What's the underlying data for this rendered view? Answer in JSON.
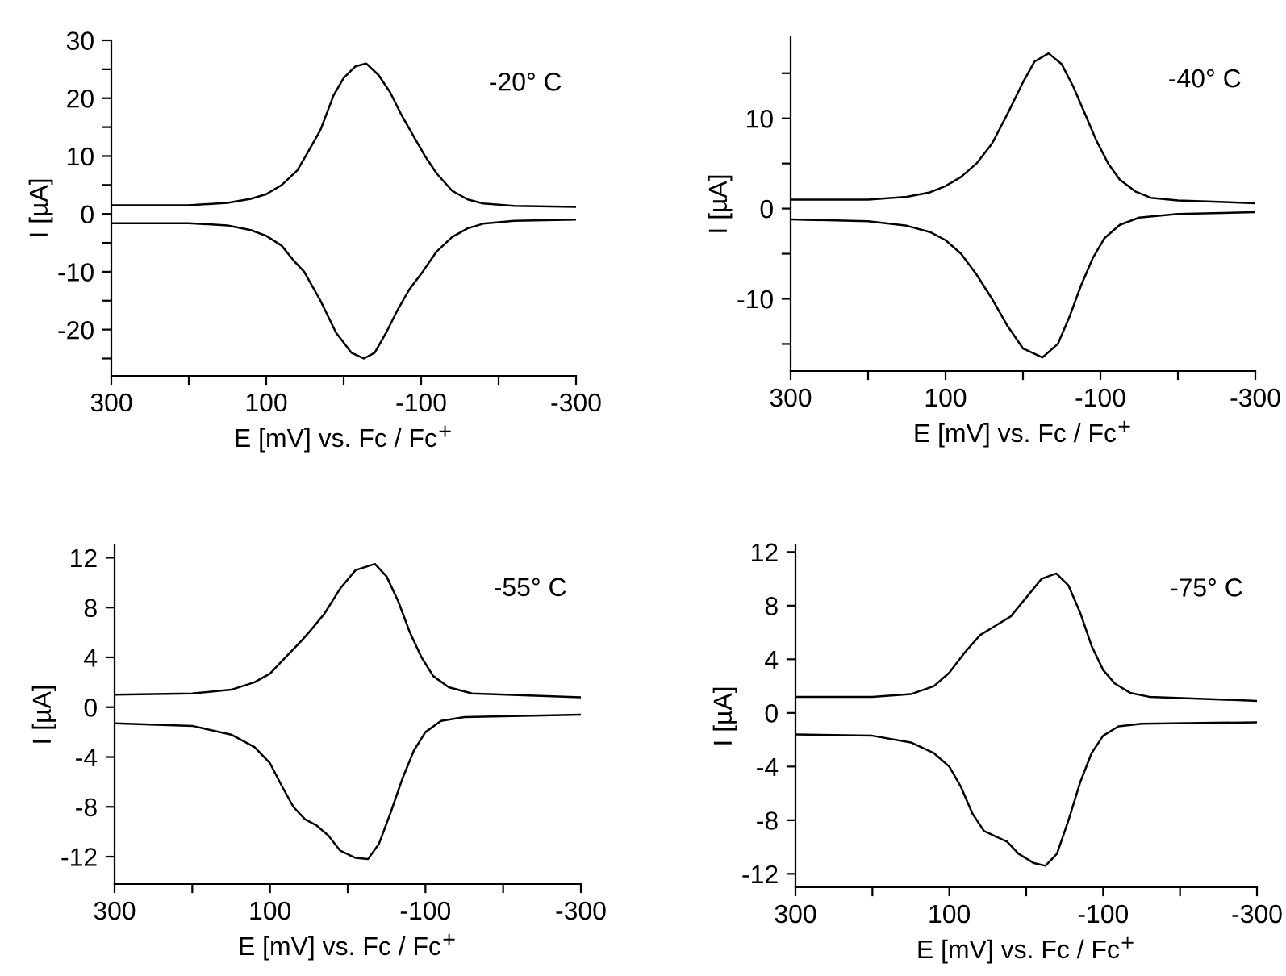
{
  "chart_data": [
    {
      "type": "line",
      "xlabel": "E [mV] vs. Fc / Fc$^{+}$",
      "ylabel": "I [µA]",
      "annotations": [
        "-20° C"
      ],
      "xlim": [
        300,
        -300
      ],
      "ylim": [
        -28,
        30
      ],
      "xticks": [
        300,
        {
          "value": 200,
          "label": null
        },
        100,
        {
          "value": 0,
          "label": null
        },
        -100,
        {
          "value": -200,
          "label": null
        },
        -300
      ],
      "yticks": [
        30,
        {
          "value": 25,
          "label": null
        },
        20,
        {
          "value": 15,
          "label": null
        },
        10,
        {
          "value": 5,
          "label": null
        },
        0,
        {
          "value": -5,
          "label": null
        },
        -10,
        {
          "value": -15,
          "label": null
        },
        -20,
        {
          "value": -25,
          "label": null
        }
      ],
      "marker": "none",
      "line_style": "solid",
      "series": [
        {
          "color": "#000000",
          "x": [
            300,
            200,
            150,
            120,
            100,
            80,
            60,
            49,
            30,
            13,
            0,
            -15,
            -29,
            -45,
            -60,
            -75,
            -90,
            -105,
            -120,
            -140,
            -160,
            -180,
            -220,
            -300
          ],
          "values": [
            1.5,
            1.5,
            1.9,
            2.6,
            3.4,
            5,
            7.5,
            10,
            14.5,
            20.5,
            23.5,
            25.5,
            26,
            24,
            21,
            17,
            13.5,
            10,
            7,
            4,
            2.5,
            1.8,
            1.4,
            1.2
          ]
        },
        {
          "color": "#000000",
          "x": [
            300,
            200,
            150,
            120,
            100,
            80,
            65,
            51,
            30,
            10,
            -10,
            -26,
            -40,
            -55,
            -70,
            -85,
            -102,
            -120,
            -140,
            -160,
            -180,
            -220,
            -300
          ],
          "values": [
            -1.6,
            -1.6,
            -2.0,
            -2.8,
            -3.8,
            -5.5,
            -8,
            -10,
            -15,
            -20.5,
            -24,
            -25,
            -24,
            -20.5,
            -16.5,
            -13,
            -10,
            -6.5,
            -4,
            -2.5,
            -1.7,
            -1.2,
            -1.0
          ]
        }
      ]
    },
    {
      "type": "line",
      "xlabel": "E [mV] vs. Fc / Fc$^{+}$",
      "ylabel": "I [µA]",
      "annotations": [
        "-40° C"
      ],
      "xlim": [
        300,
        -300
      ],
      "ylim": [
        -18,
        19
      ],
      "xticks": [
        300,
        {
          "value": 200,
          "label": null
        },
        100,
        {
          "value": 0,
          "label": null
        },
        -100,
        {
          "value": -200,
          "label": null
        },
        -300
      ],
      "yticks": [
        {
          "value": 15,
          "label": null
        },
        10,
        {
          "value": 5,
          "label": null
        },
        0,
        {
          "value": -5,
          "label": null
        },
        -10,
        {
          "value": -15,
          "label": null
        }
      ],
      "marker": "none",
      "line_style": "solid",
      "series": [
        {
          "color": "#000000",
          "x": [
            300,
            200,
            150,
            120,
            100,
            80,
            60,
            40,
            20,
            0,
            -15,
            -33,
            -50,
            -65,
            -80,
            -95,
            -110,
            -125,
            -145,
            -165,
            -200,
            -300
          ],
          "values": [
            1.0,
            1.0,
            1.3,
            1.8,
            2.5,
            3.5,
            5.0,
            7.2,
            10.5,
            14,
            16.3,
            17.2,
            16,
            13.5,
            10.5,
            7.5,
            5,
            3.2,
            1.9,
            1.2,
            0.9,
            0.6
          ]
        },
        {
          "color": "#000000",
          "x": [
            300,
            200,
            150,
            120,
            100,
            80,
            60,
            40,
            20,
            0,
            -25,
            -45,
            -60,
            -75,
            -90,
            -105,
            -125,
            -150,
            -200,
            -300
          ],
          "values": [
            -1.2,
            -1.4,
            -1.9,
            -2.6,
            -3.5,
            -5,
            -7.3,
            -10,
            -13,
            -15.5,
            -16.5,
            -15,
            -12,
            -8.5,
            -5.5,
            -3.3,
            -1.8,
            -1.0,
            -0.6,
            -0.4
          ]
        }
      ]
    },
    {
      "type": "line",
      "xlabel": "E [mV] vs. Fc / Fc$^{+}$",
      "ylabel": "I [µA]",
      "annotations": [
        "-55° C"
      ],
      "xlim": [
        300,
        -300
      ],
      "ylim": [
        -14.2,
        13
      ],
      "xticks": [
        300,
        {
          "value": 200,
          "label": null
        },
        100,
        {
          "value": 0,
          "label": null
        },
        -100,
        {
          "value": -200,
          "label": null
        },
        -300
      ],
      "yticks": [
        12,
        8,
        4,
        0,
        -4,
        -8,
        -12
      ],
      "marker": "none",
      "line_style": "solid",
      "series": [
        {
          "color": "#000000",
          "x": [
            300,
            200,
            150,
            120,
            100,
            80,
            60,
            50,
            30,
            10,
            -10,
            -35,
            -50,
            -65,
            -80,
            -95,
            -110,
            -130,
            -160,
            -300
          ],
          "values": [
            1.0,
            1.1,
            1.4,
            2.0,
            2.7,
            4.0,
            5.3,
            6.0,
            7.5,
            9.5,
            11,
            11.5,
            10.5,
            8.5,
            6,
            4,
            2.5,
            1.6,
            1.1,
            0.8
          ]
        },
        {
          "color": "#000000",
          "x": [
            300,
            200,
            150,
            120,
            100,
            85,
            70,
            55,
            40,
            25,
            10,
            -10,
            -26,
            -40,
            -55,
            -70,
            -85,
            -100,
            -120,
            -150,
            -300
          ],
          "values": [
            -1.3,
            -1.5,
            -2.2,
            -3.2,
            -4.5,
            -6.3,
            -8.0,
            -9.0,
            -9.5,
            -10.3,
            -11.5,
            -12.1,
            -12.2,
            -11,
            -8.5,
            -5.8,
            -3.5,
            -2.0,
            -1.1,
            -0.8,
            -0.6
          ]
        }
      ]
    },
    {
      "type": "line",
      "xlabel": "E [mV] vs. Fc / Fc$^{+}$",
      "ylabel": "I [µA]",
      "annotations": [
        "-75° C"
      ],
      "xlim": [
        300,
        -300
      ],
      "ylim": [
        -13,
        12.5
      ],
      "xticks": [
        300,
        {
          "value": 200,
          "label": null
        },
        100,
        {
          "value": 0,
          "label": null
        },
        -100,
        {
          "value": -200,
          "label": null
        },
        -300
      ],
      "yticks": [
        12,
        8,
        4,
        0,
        -4,
        -8,
        -12
      ],
      "marker": "none",
      "line_style": "solid",
      "series": [
        {
          "color": "#000000",
          "x": [
            300,
            200,
            150,
            120,
            100,
            80,
            60,
            40,
            20,
            0,
            -20,
            -39,
            -55,
            -70,
            -85,
            -100,
            -115,
            -135,
            -160,
            -300
          ],
          "values": [
            1.2,
            1.2,
            1.4,
            2.0,
            3.0,
            4.5,
            5.8,
            6.5,
            7.2,
            8.6,
            10,
            10.4,
            9.5,
            7.5,
            5.0,
            3.2,
            2.2,
            1.5,
            1.2,
            0.9
          ]
        },
        {
          "color": "#000000",
          "x": [
            300,
            200,
            150,
            120,
            100,
            85,
            70,
            55,
            40,
            25,
            10,
            -10,
            -25,
            -40,
            -55,
            -70,
            -85,
            -100,
            -120,
            -150,
            -300
          ],
          "values": [
            -1.6,
            -1.7,
            -2.2,
            -3.0,
            -4.0,
            -5.5,
            -7.5,
            -8.8,
            -9.2,
            -9.6,
            -10.5,
            -11.2,
            -11.4,
            -10.5,
            -8,
            -5.2,
            -3,
            -1.7,
            -1.0,
            -0.8,
            -0.7
          ]
        }
      ]
    }
  ]
}
